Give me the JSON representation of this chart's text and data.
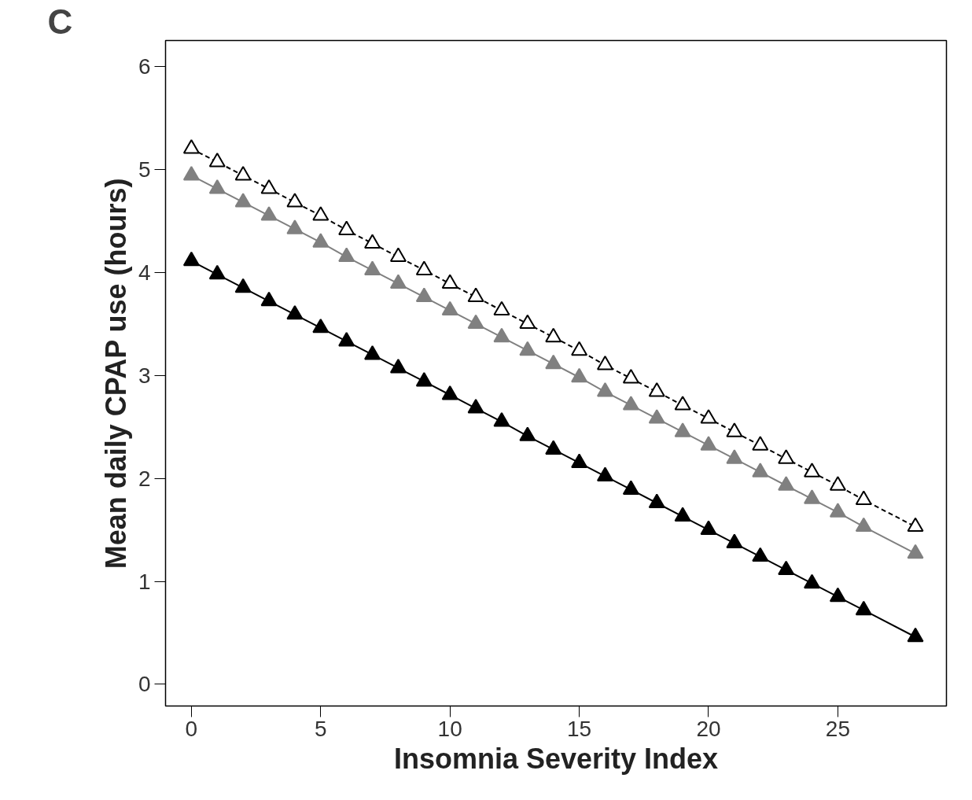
{
  "chart_data": {
    "type": "line",
    "xlabel": "Insomnia Severity Index",
    "ylabel": "Mean daily CPAP use (hours)",
    "annotations": [
      "C"
    ],
    "x": [
      0,
      1,
      2,
      3,
      4,
      5,
      6,
      7,
      8,
      9,
      10,
      11,
      12,
      13,
      14,
      15,
      16,
      17,
      18,
      19,
      20,
      21,
      22,
      23,
      24,
      25,
      26,
      28
    ],
    "series": [
      {
        "color": "#000000",
        "line_style": "dashed",
        "values": [
          5.2,
          5.07,
          4.94,
          4.81,
          4.68,
          4.55,
          4.41,
          4.28,
          4.15,
          4.02,
          3.89,
          3.76,
          3.63,
          3.5,
          3.37,
          3.24,
          3.1,
          2.97,
          2.84,
          2.71,
          2.58,
          2.45,
          2.32,
          2.19,
          2.06,
          1.93,
          1.79,
          1.53
        ]
      },
      {
        "color": "#808080",
        "line_style": "solid",
        "values": [
          4.94,
          4.81,
          4.68,
          4.55,
          4.42,
          4.29,
          4.15,
          4.02,
          3.89,
          3.76,
          3.63,
          3.5,
          3.37,
          3.24,
          3.11,
          2.98,
          2.84,
          2.71,
          2.58,
          2.45,
          2.32,
          2.19,
          2.06,
          1.93,
          1.8,
          1.67,
          1.53,
          1.27
        ]
      },
      {
        "color": "#000000",
        "line_style": "solid",
        "values": [
          4.11,
          3.98,
          3.85,
          3.72,
          3.59,
          3.46,
          3.33,
          3.2,
          3.07,
          2.94,
          2.81,
          2.68,
          2.55,
          2.41,
          2.28,
          2.15,
          2.02,
          1.89,
          1.76,
          1.63,
          1.5,
          1.37,
          1.24,
          1.11,
          0.98,
          0.85,
          0.72,
          0.46
        ]
      }
    ],
    "marker": "triangle",
    "xlim": [
      -1,
      29.2
    ],
    "ylim": [
      -0.21,
      6.25
    ],
    "xticks": [
      0,
      5,
      10,
      15,
      20,
      25
    ],
    "yticks": [
      0,
      1,
      2,
      3,
      4,
      5,
      6
    ],
    "grid": false
  }
}
